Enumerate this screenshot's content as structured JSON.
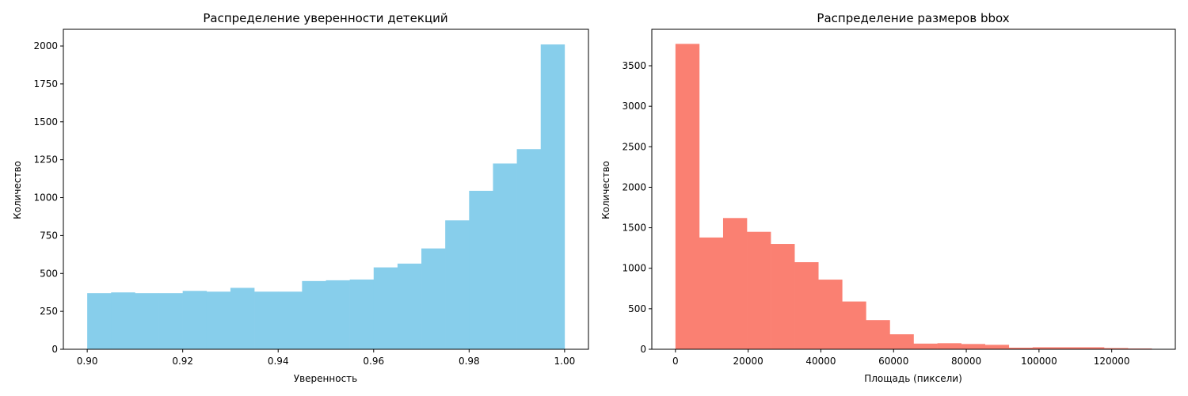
{
  "chart_data": [
    {
      "type": "bar",
      "title": "Распределение уверенности детекций",
      "xlabel": "Уверенность",
      "ylabel": "Количество",
      "color": "#87ceeb",
      "xlim": [
        0.895,
        1.005
      ],
      "ylim": [
        0,
        2110
      ],
      "x_ticks": [
        0.9,
        0.92,
        0.94,
        0.96,
        0.98,
        1.0
      ],
      "x_tick_labels": [
        "0.90",
        "0.92",
        "0.94",
        "0.96",
        "0.98",
        "1.00"
      ],
      "y_ticks": [
        0,
        250,
        500,
        750,
        1000,
        1250,
        1500,
        1750,
        2000
      ],
      "bin_start": 0.9,
      "bin_width": 0.005,
      "values": [
        370,
        375,
        370,
        370,
        385,
        380,
        405,
        380,
        380,
        450,
        455,
        460,
        540,
        565,
        665,
        850,
        1045,
        1225,
        1320,
        2010
      ]
    },
    {
      "type": "bar",
      "title": "Распределение размеров bbox",
      "xlabel": "Площадь (пиксели)",
      "ylabel": "Количество",
      "color": "#fa8072",
      "xlim": [
        -6500,
        137500
      ],
      "ylim": [
        0,
        3950
      ],
      "x_ticks": [
        0,
        20000,
        40000,
        60000,
        80000,
        100000,
        120000
      ],
      "x_tick_labels": [
        "0",
        "20000",
        "40000",
        "60000",
        "80000",
        "100000",
        "120000"
      ],
      "y_ticks": [
        0,
        500,
        1000,
        1500,
        2000,
        2500,
        3000,
        3500
      ],
      "bin_start": 0,
      "bin_width": 6550,
      "values": [
        3770,
        1380,
        1620,
        1450,
        1300,
        1075,
        860,
        590,
        360,
        185,
        70,
        75,
        65,
        55,
        20,
        25,
        25,
        25,
        15,
        10
      ]
    }
  ]
}
